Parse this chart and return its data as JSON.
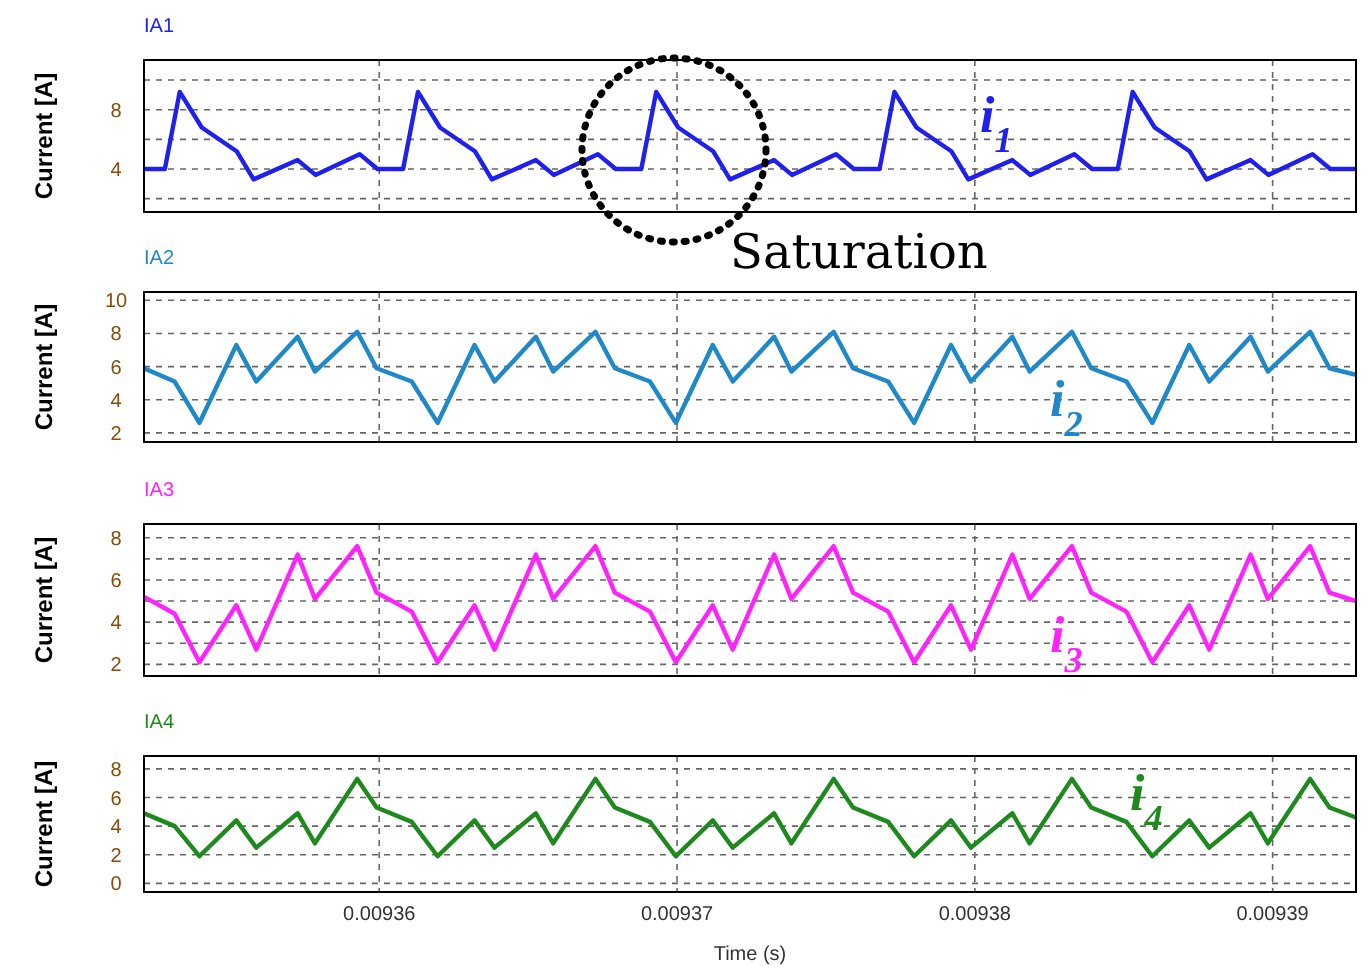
{
  "chart_data": [
    {
      "type": "line",
      "title": "IA1",
      "ylabel": "Current [A]",
      "xlim": [
        0.0093521,
        0.0093928
      ],
      "xticks": [
        0.00936,
        0.00937,
        0.00938,
        0.00939
      ],
      "ylim": [
        1.1,
        11.35
      ],
      "yticks": [
        {
          "value": 2,
          "label": null
        },
        4,
        {
          "value": 6,
          "label": null
        },
        8,
        {
          "value": 10,
          "label": null
        }
      ],
      "grid": true,
      "tick_labels": "y",
      "annotations": [
        "Saturation"
      ],
      "x": [
        0.0093521,
        0.0093528,
        0.0093533,
        0.00935404,
        0.00935521,
        0.00935578,
        0.00935726,
        0.00935786,
        0.00935934,
        0.00935994,
        0.0093608,
        0.0093613,
        0.00936204,
        0.00936321,
        0.00936378,
        0.00936526,
        0.00936586,
        0.00936734,
        0.00936794,
        0.0093688,
        0.0093693,
        0.00937004,
        0.00937121,
        0.00937178,
        0.00937326,
        0.00937386,
        0.00937534,
        0.00937594,
        0.0093768,
        0.0093773,
        0.00937804,
        0.00937921,
        0.00937978,
        0.00938126,
        0.00938186,
        0.00938334,
        0.00938394,
        0.0093848,
        0.0093853,
        0.00938604,
        0.00938721,
        0.00938778,
        0.00938926,
        0.00938986,
        0.00939134,
        0.00939194,
        0.0093928
      ],
      "series": [
        {
          "name": "i$_{1}$",
          "color": "#2020ee",
          "values": [
            4.0,
            4.0,
            9.2,
            6.8,
            5.2,
            3.3,
            4.6,
            3.6,
            5.0,
            4.0,
            4.0,
            9.2,
            6.8,
            5.2,
            3.3,
            4.6,
            3.6,
            5.0,
            4.0,
            4.0,
            9.2,
            6.8,
            5.2,
            3.3,
            4.6,
            3.6,
            5.0,
            4.0,
            4.0,
            9.2,
            6.8,
            5.2,
            3.3,
            4.6,
            3.6,
            5.0,
            4.0,
            4.0,
            9.2,
            6.8,
            5.2,
            3.3,
            4.6,
            3.6,
            5.0,
            4.0,
            4.0
          ]
        }
      ]
    },
    {
      "type": "line",
      "title": "IA2",
      "ylabel": "Current [A]",
      "xlim": [
        0.0093521,
        0.0093928
      ],
      "xticks": [
        0.00936,
        0.00937,
        0.00938,
        0.00939
      ],
      "ylim": [
        1.45,
        10.5
      ],
      "yticks": [
        2,
        4,
        6,
        8,
        10
      ],
      "grid": true,
      "tick_labels": "y",
      "x": [
        0.0093521,
        0.00935313,
        0.00935396,
        0.0093552,
        0.00935587,
        0.00935726,
        0.00935784,
        0.00935926,
        0.00935991,
        0.00936109,
        0.00936196,
        0.0093632,
        0.00936387,
        0.00936526,
        0.00936584,
        0.00936726,
        0.00936791,
        0.00936909,
        0.00936996,
        0.0093712,
        0.00937187,
        0.00937326,
        0.00937384,
        0.00937526,
        0.00937591,
        0.00937709,
        0.00937796,
        0.0093792,
        0.00937987,
        0.00938126,
        0.00938184,
        0.00938326,
        0.00938391,
        0.00938509,
        0.00938596,
        0.0093872,
        0.00938787,
        0.00938926,
        0.00938984,
        0.00939126,
        0.00939191,
        0.0093928
      ],
      "series": [
        {
          "name": "i$_{2}$",
          "color": "#1e88c8",
          "values": [
            5.9,
            5.1,
            2.6,
            7.3,
            5.1,
            7.8,
            5.7,
            8.1,
            5.9,
            5.1,
            2.6,
            7.3,
            5.1,
            7.8,
            5.7,
            8.1,
            5.9,
            5.1,
            2.6,
            7.3,
            5.1,
            7.8,
            5.7,
            8.1,
            5.9,
            5.1,
            2.6,
            7.3,
            5.1,
            7.8,
            5.7,
            8.1,
            5.9,
            5.1,
            2.6,
            7.3,
            5.1,
            7.8,
            5.7,
            8.1,
            5.9,
            5.5
          ]
        }
      ]
    },
    {
      "type": "line",
      "title": "IA3",
      "ylabel": "Current [A]",
      "xlim": [
        0.0093521,
        0.0093928
      ],
      "xticks": [
        0.00936,
        0.00937,
        0.00938,
        0.00939
      ],
      "ylim": [
        1.45,
        8.65
      ],
      "yticks": [
        2,
        {
          "value": 3,
          "label": null
        },
        4,
        {
          "value": 5,
          "label": null
        },
        6,
        {
          "value": 7,
          "label": null
        },
        8
      ],
      "grid": true,
      "tick_labels": "y",
      "x": [
        0.0093521,
        0.00935313,
        0.00935396,
        0.0093552,
        0.00935587,
        0.00935726,
        0.00935784,
        0.00935926,
        0.00935991,
        0.00936109,
        0.00936196,
        0.0093632,
        0.00936387,
        0.00936526,
        0.00936584,
        0.00936726,
        0.00936791,
        0.00936909,
        0.00936996,
        0.0093712,
        0.00937187,
        0.00937326,
        0.00937384,
        0.00937526,
        0.00937591,
        0.00937709,
        0.00937796,
        0.0093792,
        0.00937987,
        0.00938126,
        0.00938184,
        0.00938326,
        0.00938391,
        0.00938509,
        0.00938596,
        0.0093872,
        0.00938787,
        0.00938926,
        0.00938984,
        0.00939126,
        0.00939191,
        0.0093928
      ],
      "series": [
        {
          "name": "i$_{3}$",
          "color": "#ff22ff",
          "values": [
            5.2,
            4.4,
            2.1,
            4.8,
            2.7,
            7.2,
            5.1,
            7.6,
            5.4,
            4.5,
            2.1,
            4.8,
            2.7,
            7.2,
            5.1,
            7.6,
            5.4,
            4.5,
            2.1,
            4.8,
            2.7,
            7.2,
            5.1,
            7.6,
            5.4,
            4.5,
            2.1,
            4.8,
            2.7,
            7.2,
            5.1,
            7.6,
            5.4,
            4.5,
            2.1,
            4.8,
            2.7,
            7.2,
            5.1,
            7.6,
            5.4,
            5.0
          ]
        }
      ]
    },
    {
      "type": "line",
      "title": "IA4",
      "ylabel": "Current [A]",
      "xlabel": "Time (s)",
      "xlim": [
        0.0093521,
        0.0093928
      ],
      "xticks": [
        0.00936,
        0.00937,
        0.00938,
        0.00939
      ],
      "ylim": [
        -0.6,
        8.9
      ],
      "yticks": [
        0,
        2,
        4,
        6,
        8
      ],
      "grid": true,
      "x": [
        0.0093521,
        0.00935313,
        0.00935396,
        0.0093552,
        0.00935587,
        0.00935726,
        0.00935784,
        0.00935926,
        0.00935991,
        0.00936109,
        0.00936196,
        0.0093632,
        0.00936387,
        0.00936526,
        0.00936584,
        0.00936726,
        0.00936791,
        0.00936909,
        0.00936996,
        0.0093712,
        0.00937187,
        0.00937326,
        0.00937384,
        0.00937526,
        0.00937591,
        0.00937709,
        0.00937796,
        0.0093792,
        0.00937987,
        0.00938126,
        0.00938184,
        0.00938326,
        0.00938391,
        0.00938509,
        0.00938596,
        0.0093872,
        0.00938787,
        0.00938926,
        0.00938984,
        0.00939126,
        0.00939191,
        0.0093928
      ],
      "series": [
        {
          "name": "i$_{4}$",
          "color": "#1e8a1e",
          "values": [
            4.9,
            4.0,
            1.9,
            4.4,
            2.5,
            4.9,
            2.8,
            7.3,
            5.3,
            4.3,
            1.9,
            4.4,
            2.5,
            4.9,
            2.8,
            7.3,
            5.3,
            4.3,
            1.9,
            4.4,
            2.5,
            4.9,
            2.8,
            7.3,
            5.3,
            4.3,
            1.9,
            4.4,
            2.5,
            4.9,
            2.8,
            7.3,
            5.3,
            4.3,
            1.9,
            4.4,
            2.5,
            4.9,
            2.8,
            7.3,
            5.3,
            4.6
          ]
        }
      ]
    }
  ]
}
